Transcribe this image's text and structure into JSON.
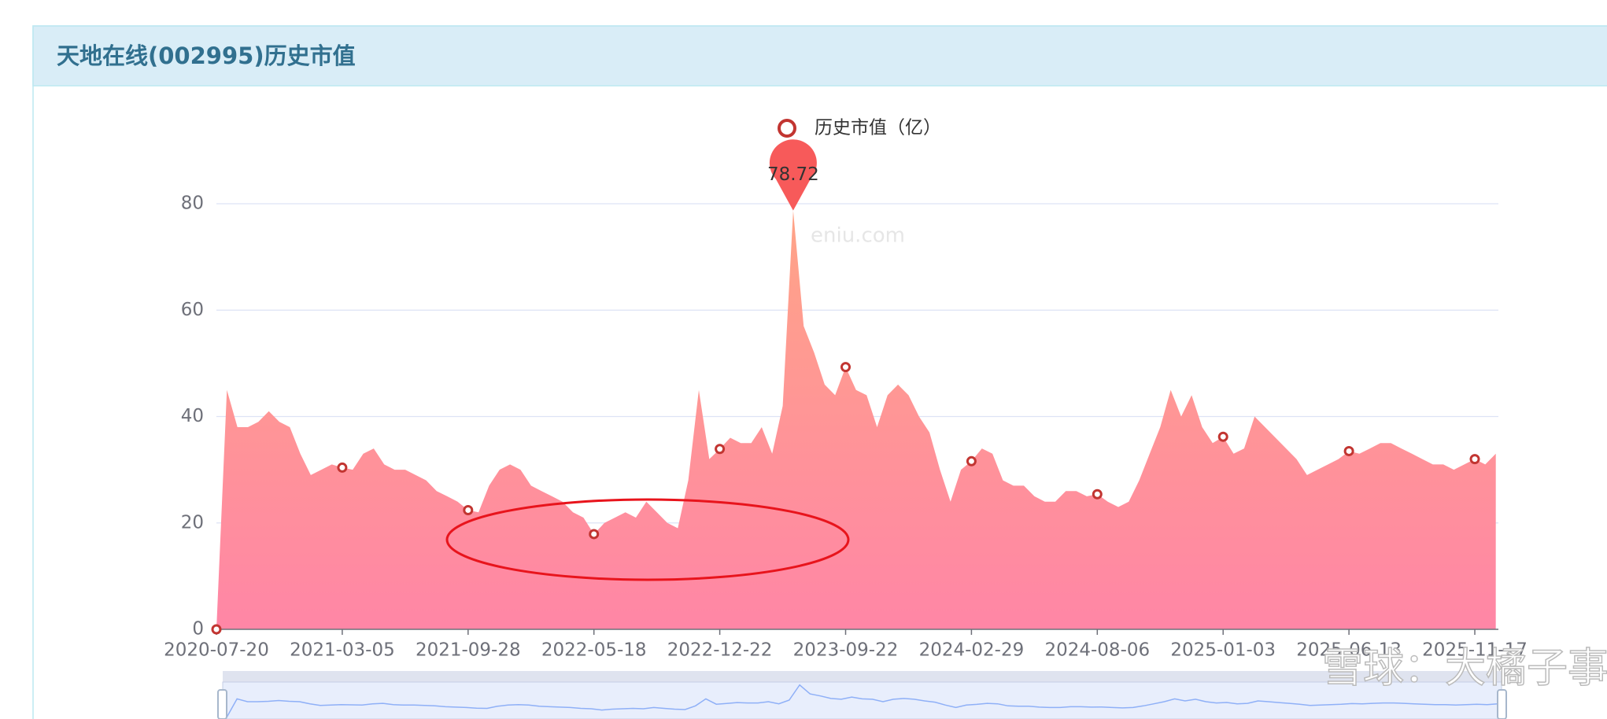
{
  "header": {
    "title": "天地在线(002995)历史市值"
  },
  "watermarks": [
    "eniu.com",
    "雪球：大橘子事务所"
  ],
  "chart_data": {
    "type": "area",
    "categories": [
      "2020-07-20",
      null,
      null,
      null,
      null,
      null,
      null,
      null,
      null,
      null,
      null,
      null,
      "2021-03-05",
      null,
      null,
      null,
      null,
      null,
      null,
      null,
      null,
      null,
      null,
      null,
      "2021-09-28",
      null,
      null,
      null,
      null,
      null,
      null,
      null,
      null,
      null,
      null,
      null,
      "2022-05-18",
      null,
      null,
      null,
      null,
      null,
      null,
      null,
      null,
      null,
      null,
      null,
      "2022-12-22",
      null,
      null,
      null,
      null,
      null,
      null,
      null,
      null,
      null,
      null,
      null,
      "2023-09-22",
      null,
      null,
      null,
      null,
      null,
      null,
      null,
      null,
      null,
      null,
      null,
      "2024-02-29",
      null,
      null,
      null,
      null,
      null,
      null,
      null,
      null,
      null,
      null,
      null,
      "2024-08-06",
      null,
      null,
      null,
      null,
      null,
      null,
      null,
      null,
      null,
      null,
      null,
      "2025-01-03",
      null,
      null,
      null,
      null,
      null,
      null,
      null,
      null,
      null,
      null,
      null,
      "2025-06-13",
      null,
      null,
      null,
      null,
      null,
      null,
      null,
      null,
      null,
      null,
      null,
      "2025-11-17",
      null,
      null
    ],
    "series": [
      {
        "name": "历史市值（亿）",
        "color": "#c23531",
        "gradient": [
          "#ffa487",
          "#ff86a6"
        ],
        "values": [
          0,
          45,
          38,
          38,
          39,
          41,
          39,
          38,
          33,
          29,
          30,
          31,
          30.4,
          30,
          33,
          34,
          31,
          30,
          30,
          29,
          28,
          26,
          25,
          24,
          22.4,
          22,
          27,
          30,
          31,
          30,
          27,
          26,
          25,
          24,
          22,
          21,
          17.9,
          20,
          21,
          22,
          21,
          24,
          22,
          20,
          19,
          28,
          45,
          32,
          33.9,
          36,
          35,
          35,
          38,
          33,
          42,
          78.72,
          57,
          52,
          46,
          44,
          49.3,
          45,
          44,
          38,
          44,
          46,
          44,
          40,
          37,
          30,
          24,
          30,
          31.6,
          34,
          33,
          28,
          27,
          27,
          25,
          24,
          24,
          26,
          26,
          25,
          25.4,
          24,
          23,
          24,
          28,
          33,
          38,
          45,
          40,
          44,
          38,
          35,
          36.2,
          33,
          34,
          40,
          38,
          36,
          34,
          32,
          29,
          30,
          31,
          32,
          33.5,
          33,
          34,
          35,
          35,
          34,
          33,
          32,
          31,
          31,
          30,
          31,
          32,
          31,
          33
        ]
      }
    ],
    "ylim": [
      0,
      80
    ],
    "yticks": [
      0,
      20,
      40,
      60,
      80
    ],
    "grid": true,
    "max_marker_index": 55
  }
}
